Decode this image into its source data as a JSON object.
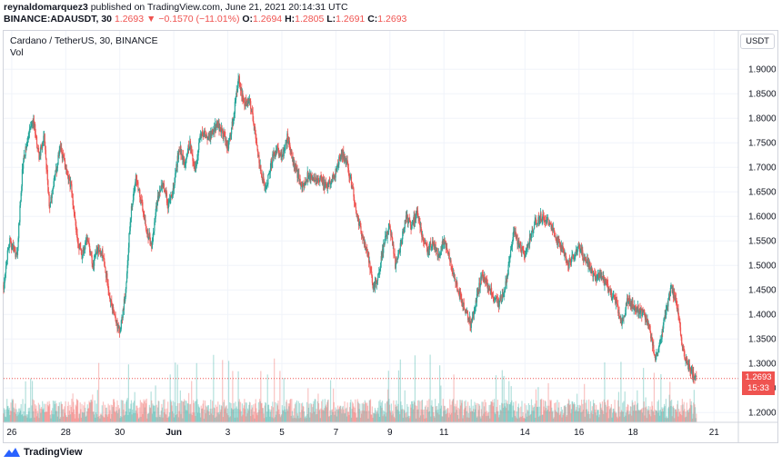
{
  "header": {
    "published": {
      "user": "reynaldomarquez3",
      "text": " published on TradingView.com, June 21, 2021 20:14:31 UTC"
    },
    "quote": {
      "symbol": "BINANCE:ADAUSDT, 30",
      "last": "1.2693",
      "arrow": "▼",
      "change": "−0.1570 (−11.01%)",
      "o_label": "O:",
      "o": "1.2694",
      "h_label": "H:",
      "h": "1.2805",
      "l_label": "L:",
      "l": "1.2691",
      "c_label": "C:",
      "c": "1.2693"
    }
  },
  "legend": {
    "title": "Cardano / TetherUS, 30, BINANCE",
    "vol": "Vol"
  },
  "currency_button": "USDT",
  "price_tag": {
    "price": "1.2693",
    "countdown": "15:33"
  },
  "footer": {
    "brand": "TradingView"
  },
  "colors": {
    "up": "#26a69a",
    "down": "#ef5350",
    "grid": "#f0f3fa",
    "axis_text": "#131722"
  },
  "chart_data": {
    "type": "candlestick",
    "title": "Cardano / TetherUS, 30, BINANCE",
    "xlabel": "",
    "ylabel": "",
    "y_ticks": [
      1.2,
      1.25,
      1.3,
      1.35,
      1.4,
      1.45,
      1.5,
      1.55,
      1.6,
      1.65,
      1.7,
      1.75,
      1.8,
      1.85,
      1.9
    ],
    "y_tick_labels": [
      "1.2000",
      "1.2500",
      "1.3000",
      "1.3500",
      "1.4000",
      "1.4500",
      "1.5000",
      "1.5500",
      "1.6000",
      "1.6500",
      "1.7000",
      "1.7500",
      "1.8000",
      "1.8500",
      "1.9000"
    ],
    "ylim": [
      1.18,
      1.93
    ],
    "x_ticks": [
      {
        "label": "26",
        "day": 0
      },
      {
        "label": "28",
        "day": 2
      },
      {
        "label": "30",
        "day": 4
      },
      {
        "label": "Jun",
        "day": 6
      },
      {
        "label": "3",
        "day": 8
      },
      {
        "label": "5",
        "day": 10
      },
      {
        "label": "7",
        "day": 12
      },
      {
        "label": "9",
        "day": 14
      },
      {
        "label": "11",
        "day": 16
      },
      {
        "label": "14",
        "day": 19
      },
      {
        "label": "16",
        "day": 21
      },
      {
        "label": "18",
        "day": 23
      },
      {
        "label": "21",
        "day": 26
      }
    ],
    "xlim_days": [
      -0.3,
      26.9
    ],
    "price_path": [
      [
        -0.3,
        1.46
      ],
      [
        -0.1,
        1.55
      ],
      [
        0.2,
        1.52
      ],
      [
        0.4,
        1.7
      ],
      [
        0.6,
        1.76
      ],
      [
        0.8,
        1.8
      ],
      [
        1.0,
        1.72
      ],
      [
        1.2,
        1.76
      ],
      [
        1.4,
        1.62
      ],
      [
        1.6,
        1.68
      ],
      [
        1.8,
        1.74
      ],
      [
        2.0,
        1.7
      ],
      [
        2.2,
        1.66
      ],
      [
        2.4,
        1.56
      ],
      [
        2.6,
        1.52
      ],
      [
        2.8,
        1.56
      ],
      [
        3.0,
        1.5
      ],
      [
        3.2,
        1.54
      ],
      [
        3.4,
        1.52
      ],
      [
        3.6,
        1.44
      ],
      [
        3.8,
        1.4
      ],
      [
        4.0,
        1.36
      ],
      [
        4.2,
        1.44
      ],
      [
        4.4,
        1.6
      ],
      [
        4.6,
        1.68
      ],
      [
        4.8,
        1.63
      ],
      [
        5.0,
        1.57
      ],
      [
        5.2,
        1.54
      ],
      [
        5.4,
        1.64
      ],
      [
        5.6,
        1.67
      ],
      [
        5.8,
        1.62
      ],
      [
        6.0,
        1.66
      ],
      [
        6.2,
        1.74
      ],
      [
        6.4,
        1.71
      ],
      [
        6.6,
        1.75
      ],
      [
        6.8,
        1.69
      ],
      [
        7.0,
        1.77
      ],
      [
        7.3,
        1.76
      ],
      [
        7.6,
        1.79
      ],
      [
        7.8,
        1.77
      ],
      [
        8.0,
        1.74
      ],
      [
        8.2,
        1.8
      ],
      [
        8.4,
        1.88
      ],
      [
        8.6,
        1.83
      ],
      [
        8.8,
        1.84
      ],
      [
        9.0,
        1.77
      ],
      [
        9.2,
        1.7
      ],
      [
        9.4,
        1.65
      ],
      [
        9.6,
        1.71
      ],
      [
        9.8,
        1.74
      ],
      [
        10.0,
        1.72
      ],
      [
        10.2,
        1.76
      ],
      [
        10.4,
        1.72
      ],
      [
        10.6,
        1.68
      ],
      [
        10.8,
        1.66
      ],
      [
        11.0,
        1.69
      ],
      [
        11.2,
        1.67
      ],
      [
        11.4,
        1.68
      ],
      [
        11.6,
        1.66
      ],
      [
        11.8,
        1.67
      ],
      [
        12.0,
        1.69
      ],
      [
        12.2,
        1.73
      ],
      [
        12.4,
        1.71
      ],
      [
        12.6,
        1.66
      ],
      [
        12.8,
        1.6
      ],
      [
        13.0,
        1.55
      ],
      [
        13.2,
        1.52
      ],
      [
        13.4,
        1.45
      ],
      [
        13.6,
        1.49
      ],
      [
        13.8,
        1.55
      ],
      [
        14.0,
        1.58
      ],
      [
        14.2,
        1.5
      ],
      [
        14.4,
        1.54
      ],
      [
        14.6,
        1.6
      ],
      [
        14.8,
        1.58
      ],
      [
        15.0,
        1.61
      ],
      [
        15.2,
        1.56
      ],
      [
        15.4,
        1.53
      ],
      [
        15.6,
        1.55
      ],
      [
        15.8,
        1.52
      ],
      [
        16.0,
        1.55
      ],
      [
        16.2,
        1.52
      ],
      [
        16.4,
        1.47
      ],
      [
        16.6,
        1.44
      ],
      [
        16.8,
        1.41
      ],
      [
        17.0,
        1.38
      ],
      [
        17.2,
        1.43
      ],
      [
        17.4,
        1.48
      ],
      [
        17.6,
        1.46
      ],
      [
        17.8,
        1.44
      ],
      [
        18.0,
        1.42
      ],
      [
        18.2,
        1.44
      ],
      [
        18.4,
        1.5
      ],
      [
        18.6,
        1.57
      ],
      [
        18.8,
        1.54
      ],
      [
        19.0,
        1.52
      ],
      [
        19.2,
        1.56
      ],
      [
        19.4,
        1.59
      ],
      [
        19.6,
        1.6
      ],
      [
        19.8,
        1.59
      ],
      [
        20.0,
        1.58
      ],
      [
        20.2,
        1.55
      ],
      [
        20.4,
        1.53
      ],
      [
        20.6,
        1.5
      ],
      [
        20.8,
        1.52
      ],
      [
        21.0,
        1.54
      ],
      [
        21.2,
        1.51
      ],
      [
        21.4,
        1.5
      ],
      [
        21.6,
        1.47
      ],
      [
        21.8,
        1.48
      ],
      [
        22.0,
        1.46
      ],
      [
        22.2,
        1.44
      ],
      [
        22.4,
        1.42
      ],
      [
        22.6,
        1.38
      ],
      [
        22.8,
        1.43
      ],
      [
        23.0,
        1.42
      ],
      [
        23.2,
        1.41
      ],
      [
        23.4,
        1.4
      ],
      [
        23.6,
        1.38
      ],
      [
        23.8,
        1.31
      ],
      [
        24.0,
        1.34
      ],
      [
        24.2,
        1.4
      ],
      [
        24.4,
        1.45
      ],
      [
        24.6,
        1.43
      ],
      [
        24.8,
        1.34
      ],
      [
        25.0,
        1.3
      ],
      [
        25.2,
        1.28
      ],
      [
        25.35,
        1.2693
      ]
    ],
    "last_price": 1.2693,
    "volume_note": "relative volume bars along the bottom of the price pane"
  }
}
